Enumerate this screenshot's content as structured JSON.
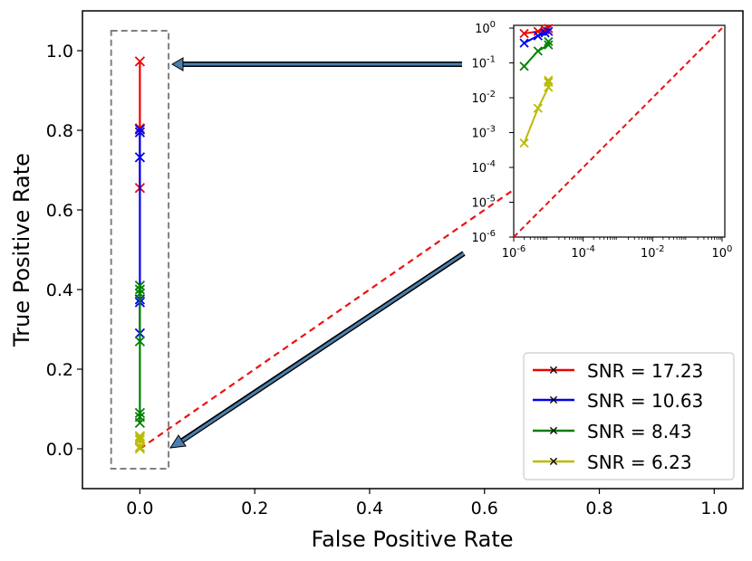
{
  "chart_data": [
    {
      "type": "line",
      "xlabel": "False Positive Rate",
      "ylabel": "True Positive Rate",
      "xlim": [
        -0.1,
        1.05
      ],
      "ylim": [
        -0.1,
        1.1
      ],
      "xticks": [
        0.0,
        0.2,
        0.4,
        0.6,
        0.8,
        1.0
      ],
      "xtick_labels": [
        "0.0",
        "0.2",
        "0.4",
        "0.6",
        "0.8",
        "1.0"
      ],
      "yticks": [
        0.0,
        0.2,
        0.4,
        0.6,
        0.8,
        1.0
      ],
      "ytick_labels": [
        "0.0",
        "0.2",
        "0.4",
        "0.6",
        "0.8",
        "1.0"
      ],
      "grid": false,
      "legend": "lower-right",
      "diagonal": {
        "x": [
          0,
          1
        ],
        "y": [
          0,
          1
        ],
        "color": "#ee1111",
        "style": "dashed"
      },
      "series": [
        {
          "name": "SNR = 17.23",
          "color": "#ee0000",
          "x": [
            0,
            0,
            0
          ],
          "y": [
            0.973,
            0.805,
            0.655
          ]
        },
        {
          "name": "SNR = 10.63",
          "color": "#0000ee",
          "x": [
            0,
            0,
            0,
            0,
            0,
            0
          ],
          "y": [
            0.802,
            0.795,
            0.732,
            0.375,
            0.368,
            0.29
          ]
        },
        {
          "name": "SNR = 8.43",
          "color": "#008000",
          "x": [
            0,
            0,
            0,
            0,
            0,
            0,
            0
          ],
          "y": [
            0.41,
            0.4,
            0.39,
            0.27,
            0.09,
            0.08,
            0.065
          ]
        },
        {
          "name": "SNR = 6.23",
          "color": "#bbbb00",
          "x": [
            0,
            0,
            0,
            0,
            0
          ],
          "y": [
            0.032,
            0.028,
            0.022,
            0.005,
            0.0005
          ]
        }
      ],
      "highlight_box": {
        "x": [
          -0.05,
          0.05
        ],
        "y": [
          -0.05,
          1.05
        ]
      }
    },
    {
      "type": "line",
      "scale": "log",
      "xlim": [
        1e-06,
        1.2
      ],
      "ylim": [
        1e-06,
        1.2
      ],
      "xtick_labels": [
        "10^-6",
        "10^-4",
        "10^-2",
        "10^0"
      ],
      "ytick_labels": [
        "10^0",
        "10^-1",
        "10^-2",
        "10^-3",
        "10^-4",
        "10^-5",
        "10^-6"
      ],
      "diagonal": {
        "x": [
          1e-06,
          1
        ],
        "y": [
          1e-06,
          1
        ],
        "color": "#ee1111",
        "style": "dashed"
      },
      "series": [
        {
          "name": "SNR = 17.23",
          "color": "#ee0000",
          "x": [
            2e-06,
            5e-06,
            8e-06,
            1e-05
          ],
          "y": [
            0.7,
            0.8,
            0.9,
            0.973
          ]
        },
        {
          "name": "SNR = 10.63",
          "color": "#0000ee",
          "x": [
            2e-06,
            5e-06,
            8e-06,
            1e-05
          ],
          "y": [
            0.37,
            0.6,
            0.73,
            0.8
          ]
        },
        {
          "name": "SNR = 8.43",
          "color": "#008000",
          "x": [
            2e-06,
            5e-06,
            1e-05,
            1e-05
          ],
          "y": [
            0.08,
            0.22,
            0.33,
            0.41
          ]
        },
        {
          "name": "SNR = 6.23",
          "color": "#bbbb00",
          "x": [
            2e-06,
            5e-06,
            1e-05,
            1e-05,
            1e-05
          ],
          "y": [
            0.0005,
            0.005,
            0.02,
            0.028,
            0.032
          ]
        }
      ]
    }
  ]
}
